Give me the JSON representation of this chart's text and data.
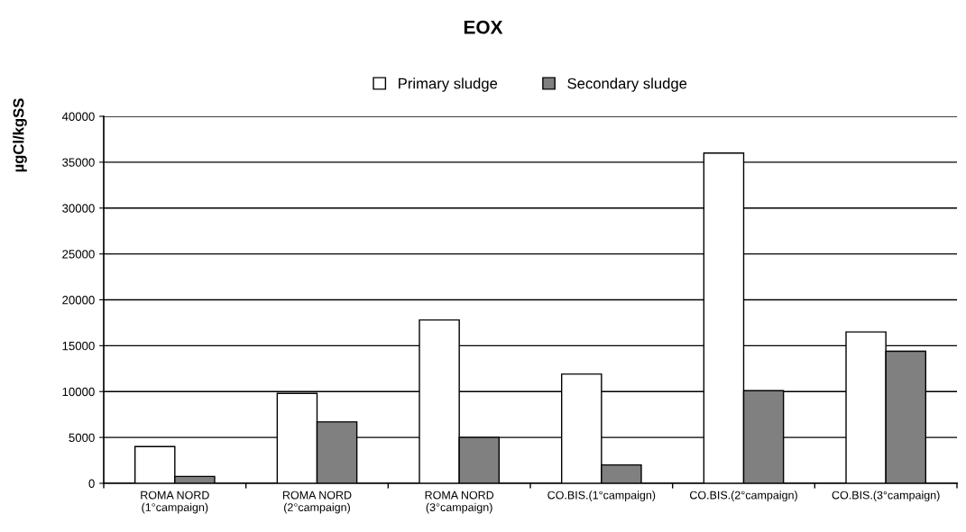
{
  "chart_data": {
    "type": "bar",
    "title": "EOX",
    "ylabel": "µgCl/kgSS",
    "categories": [
      "ROMA NORD\n(1°campaign)",
      "ROMA NORD\n(2°campaign)",
      "ROMA NORD\n(3°campaign)",
      "CO.BIS.(1°campaign)",
      "CO.BIS.(2°campaign)",
      "CO.BIS.(3°campaign)"
    ],
    "series": [
      {
        "name": "Primary sludge",
        "color": "#ffffff",
        "values": [
          4000,
          9800,
          17800,
          11900,
          36000,
          16500
        ]
      },
      {
        "name": "Secondary sludge",
        "color": "#808080",
        "values": [
          750,
          6700,
          5000,
          2000,
          10100,
          14400
        ]
      }
    ],
    "ylim": [
      0,
      40000
    ],
    "yticks": [
      0,
      5000,
      10000,
      15000,
      20000,
      25000,
      30000,
      35000,
      40000
    ],
    "grid": "y",
    "legend": "top"
  }
}
